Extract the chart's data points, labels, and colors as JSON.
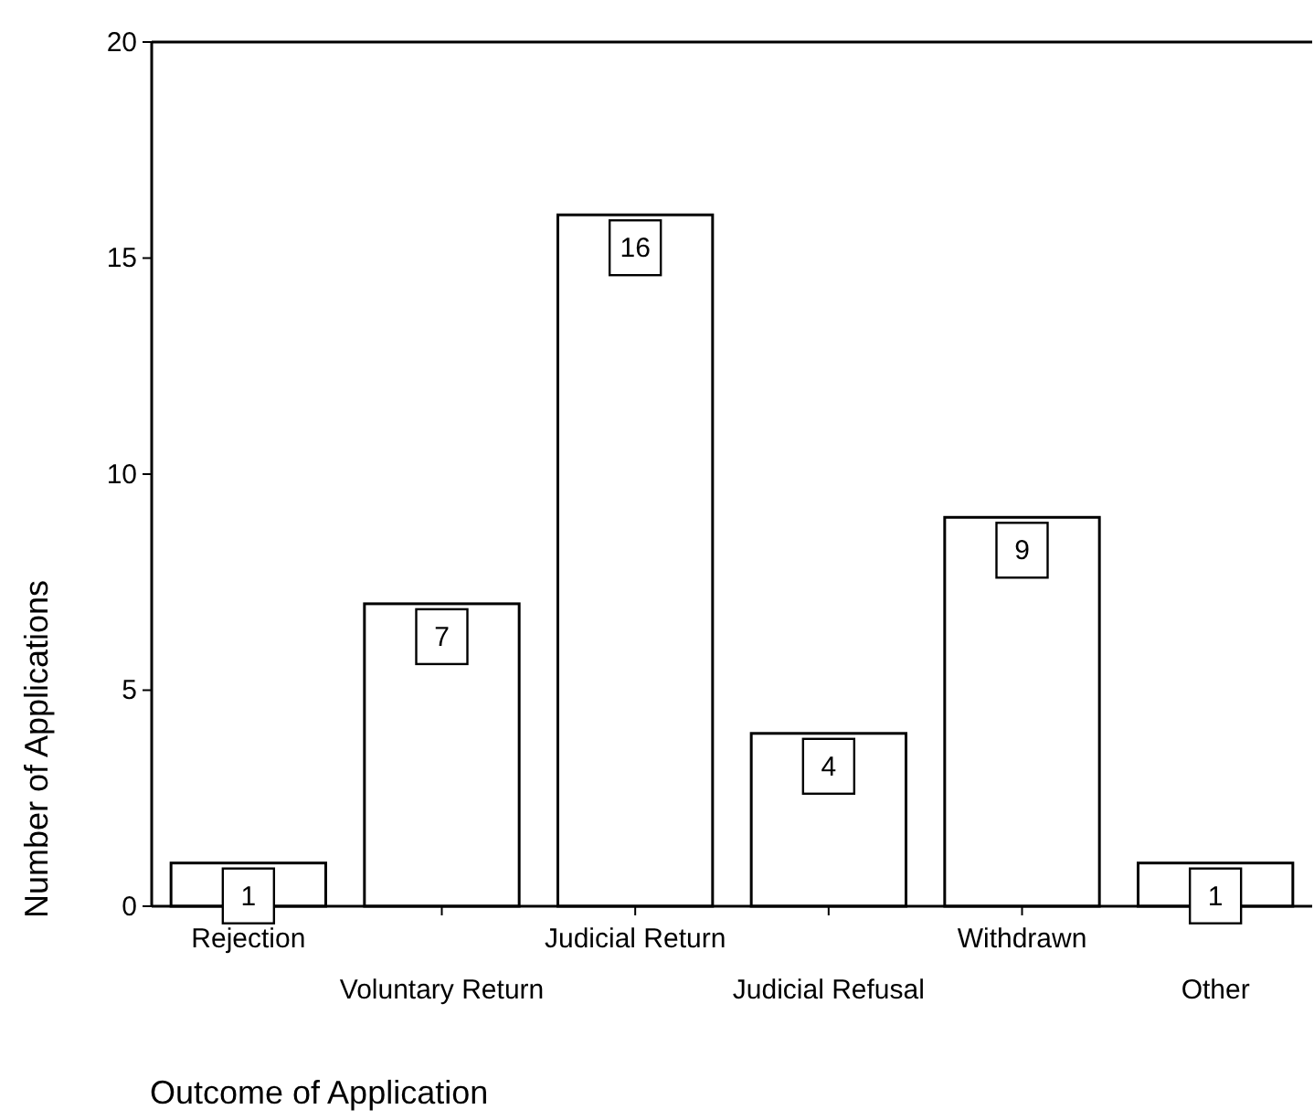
{
  "chart_data": {
    "type": "bar",
    "xlabel": "Outcome of Application",
    "ylabel": "Number of Applications",
    "categories": [
      "Rejection",
      "Voluntary Return",
      "Judicial Return",
      "Judicial Refusal",
      "Withdrawn",
      "Other"
    ],
    "values": [
      1,
      7,
      16,
      4,
      9,
      1
    ],
    "color": "#ffffff",
    "ylim": [
      0,
      20
    ],
    "yticks": [
      0,
      5,
      10,
      15,
      20
    ],
    "data_labels": true,
    "grid": false
  }
}
